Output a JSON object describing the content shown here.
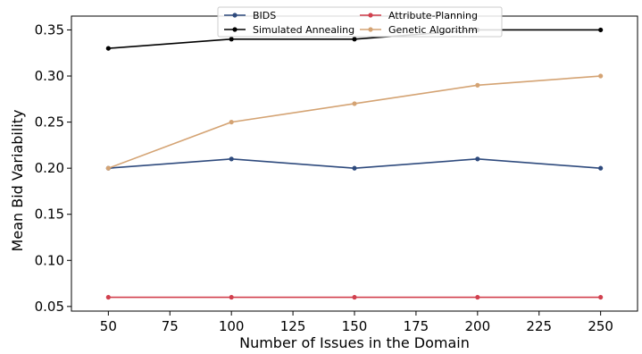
{
  "chart_data": {
    "type": "line",
    "xlabel": "Number of Issues in the Domain",
    "ylabel": "Mean Bid Variability",
    "x": [
      50,
      100,
      150,
      200,
      250
    ],
    "xlim": [
      35,
      265
    ],
    "ylim": [
      0.045,
      0.365
    ],
    "xticks": [
      50,
      75,
      100,
      125,
      150,
      175,
      200,
      225,
      250
    ],
    "xtick_labels": [
      "50",
      "75",
      "100",
      "125",
      "150",
      "175",
      "200",
      "225",
      "250"
    ],
    "yticks": [
      0.05,
      0.1,
      0.15,
      0.2,
      0.25,
      0.3,
      0.35
    ],
    "ytick_labels": [
      "0.05",
      "0.10",
      "0.15",
      "0.20",
      "0.25",
      "0.30",
      "0.35"
    ],
    "grid": false,
    "legend_position": "top-center",
    "series": [
      {
        "name": "BIDS",
        "color": "#2e4a7d",
        "values": [
          0.2,
          0.21,
          0.2,
          0.21,
          0.2
        ]
      },
      {
        "name": "Attribute-Planning",
        "color": "#d1404e",
        "values": [
          0.06,
          0.06,
          0.06,
          0.06,
          0.06
        ]
      },
      {
        "name": "Simulated Annealing",
        "color": "#000000",
        "values": [
          0.33,
          0.34,
          0.34,
          0.35,
          0.35
        ]
      },
      {
        "name": "Genetic Algorithm",
        "color": "#d4a373",
        "values": [
          0.2,
          0.25,
          0.27,
          0.29,
          0.3
        ]
      }
    ]
  }
}
